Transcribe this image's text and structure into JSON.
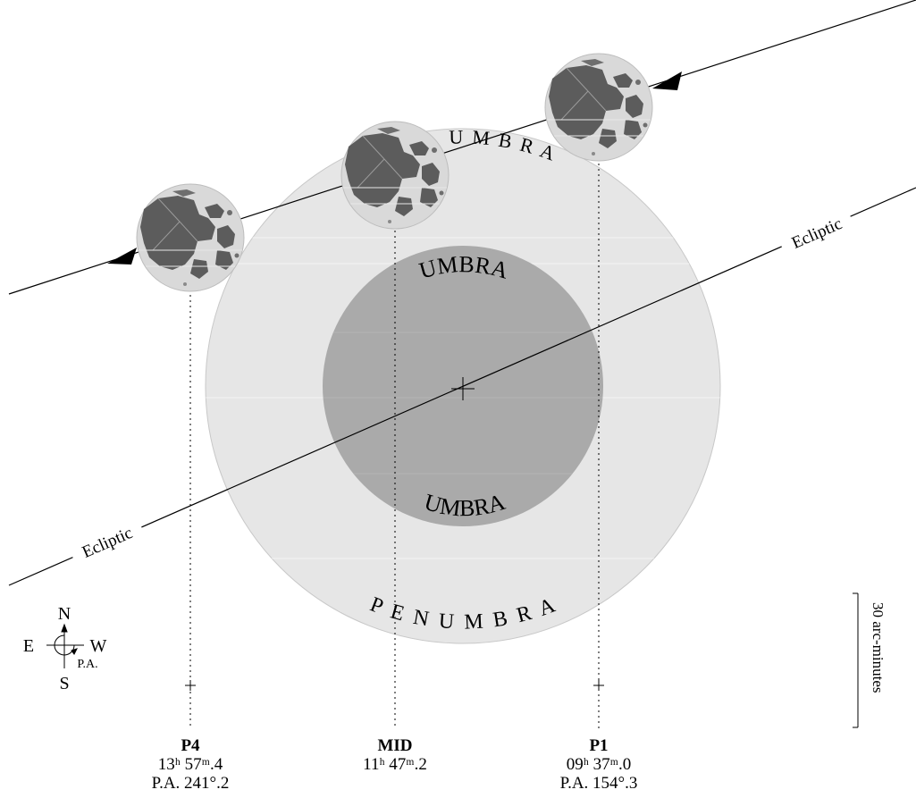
{
  "labels": {
    "penumbra_ring_top": "U M B R A",
    "umbra_top": "UMBRA",
    "umbra_bottom": "UMBRA",
    "penumbra_bottom": "P E N U M B R A",
    "ecliptic_right": "Ecliptic",
    "ecliptic_left": "Ecliptic"
  },
  "compass": {
    "north": "N",
    "south": "S",
    "east": "E",
    "west": "W",
    "pa": "P.A."
  },
  "scale_bar": {
    "label": "30 arc-minutes"
  },
  "contacts": [
    {
      "id": "p4",
      "name": "P4",
      "time": "13ʰ 57ᵐ.4",
      "pa": "P.A. 241°.2"
    },
    {
      "id": "mid",
      "name": "MID",
      "time": "11ʰ 47ᵐ.2",
      "pa": ""
    },
    {
      "id": "p1",
      "name": "P1",
      "time": "09ʰ 37ᵐ.0",
      "pa": "P.A. 154°.3"
    }
  ],
  "colors": {
    "penumbra": "#e6e6e6",
    "umbra": "#aaaaaa",
    "moon_disc": "#d8d8d8",
    "moon_maria": "#5a5a5a",
    "line": "#000000"
  }
}
